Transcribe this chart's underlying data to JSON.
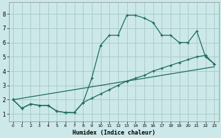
{
  "title": "",
  "xlabel": "Humidex (Indice chaleur)",
  "bg_color": "#cce8e8",
  "grid_color": "#aacccc",
  "line_color": "#1a6b5a",
  "xlim": [
    -0.5,
    23.5
  ],
  "ylim": [
    0.5,
    8.8
  ],
  "xticks": [
    0,
    1,
    2,
    3,
    4,
    5,
    6,
    7,
    8,
    9,
    10,
    11,
    12,
    13,
    14,
    15,
    16,
    17,
    18,
    19,
    20,
    21,
    22,
    23
  ],
  "yticks": [
    1,
    2,
    3,
    4,
    5,
    6,
    7,
    8
  ],
  "curve1_x": [
    0,
    1,
    2,
    3,
    4,
    5,
    6,
    7,
    8,
    9,
    10,
    11,
    12,
    13,
    14,
    15,
    16,
    17,
    18,
    19,
    20,
    21,
    22,
    23
  ],
  "curve1_y": [
    2.0,
    1.4,
    1.7,
    1.6,
    1.6,
    1.2,
    1.1,
    1.1,
    1.8,
    3.5,
    5.8,
    6.5,
    6.5,
    7.9,
    7.9,
    7.7,
    7.4,
    6.5,
    6.5,
    6.0,
    6.0,
    6.8,
    5.0,
    4.5
  ],
  "curve2_x": [
    0,
    1,
    2,
    3,
    4,
    5,
    6,
    7,
    8,
    9,
    10,
    11,
    12,
    13,
    14,
    15,
    16,
    17,
    18,
    19,
    20,
    21,
    22,
    23
  ],
  "curve2_y": [
    2.0,
    1.4,
    1.7,
    1.6,
    1.6,
    1.2,
    1.1,
    1.1,
    1.8,
    2.1,
    2.4,
    2.7,
    3.0,
    3.3,
    3.5,
    3.7,
    4.0,
    4.2,
    4.4,
    4.6,
    4.8,
    5.0,
    5.1,
    4.5
  ],
  "line3_x": [
    0,
    23
  ],
  "line3_y": [
    2.0,
    4.3
  ]
}
